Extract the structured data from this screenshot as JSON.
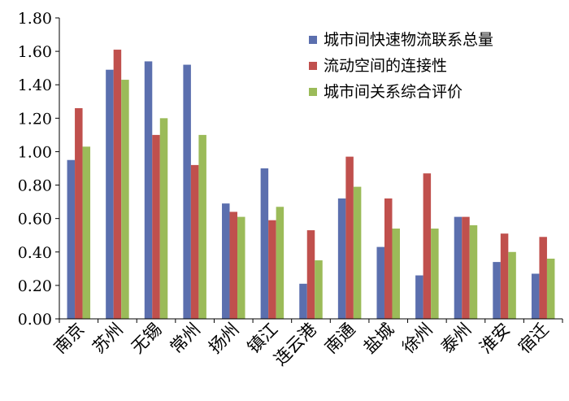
{
  "chart_data": {
    "type": "bar",
    "title": "",
    "xlabel": "",
    "ylabel": "",
    "ylim": [
      0,
      1.8
    ],
    "yticks": [
      "0.00",
      "0.20",
      "0.40",
      "0.60",
      "0.80",
      "1.00",
      "1.20",
      "1.40",
      "1.60",
      "1.80"
    ],
    "grid": false,
    "legend_position": "top-right",
    "categories": [
      "南京",
      "苏州",
      "无锡",
      "常州",
      "扬州",
      "镇江",
      "连云港",
      "南通",
      "盐城",
      "徐州",
      "泰州",
      "淮安",
      "宿迁"
    ],
    "series": [
      {
        "name": "城市间快速物流联系总量",
        "color": "#5b6fae",
        "values": [
          0.95,
          1.49,
          1.54,
          1.52,
          0.69,
          0.9,
          0.21,
          0.72,
          0.43,
          0.26,
          0.61,
          0.34,
          0.27
        ]
      },
      {
        "name": "流动空间的连接性",
        "color": "#c0504d",
        "values": [
          1.26,
          1.61,
          1.1,
          0.92,
          0.64,
          0.59,
          0.53,
          0.97,
          0.72,
          0.87,
          0.61,
          0.51,
          0.49
        ]
      },
      {
        "name": "城市间关系综合评价",
        "color": "#9bbb59",
        "values": [
          1.03,
          1.43,
          1.2,
          1.1,
          0.61,
          0.67,
          0.35,
          0.79,
          0.54,
          0.54,
          0.56,
          0.4,
          0.36
        ]
      }
    ]
  }
}
